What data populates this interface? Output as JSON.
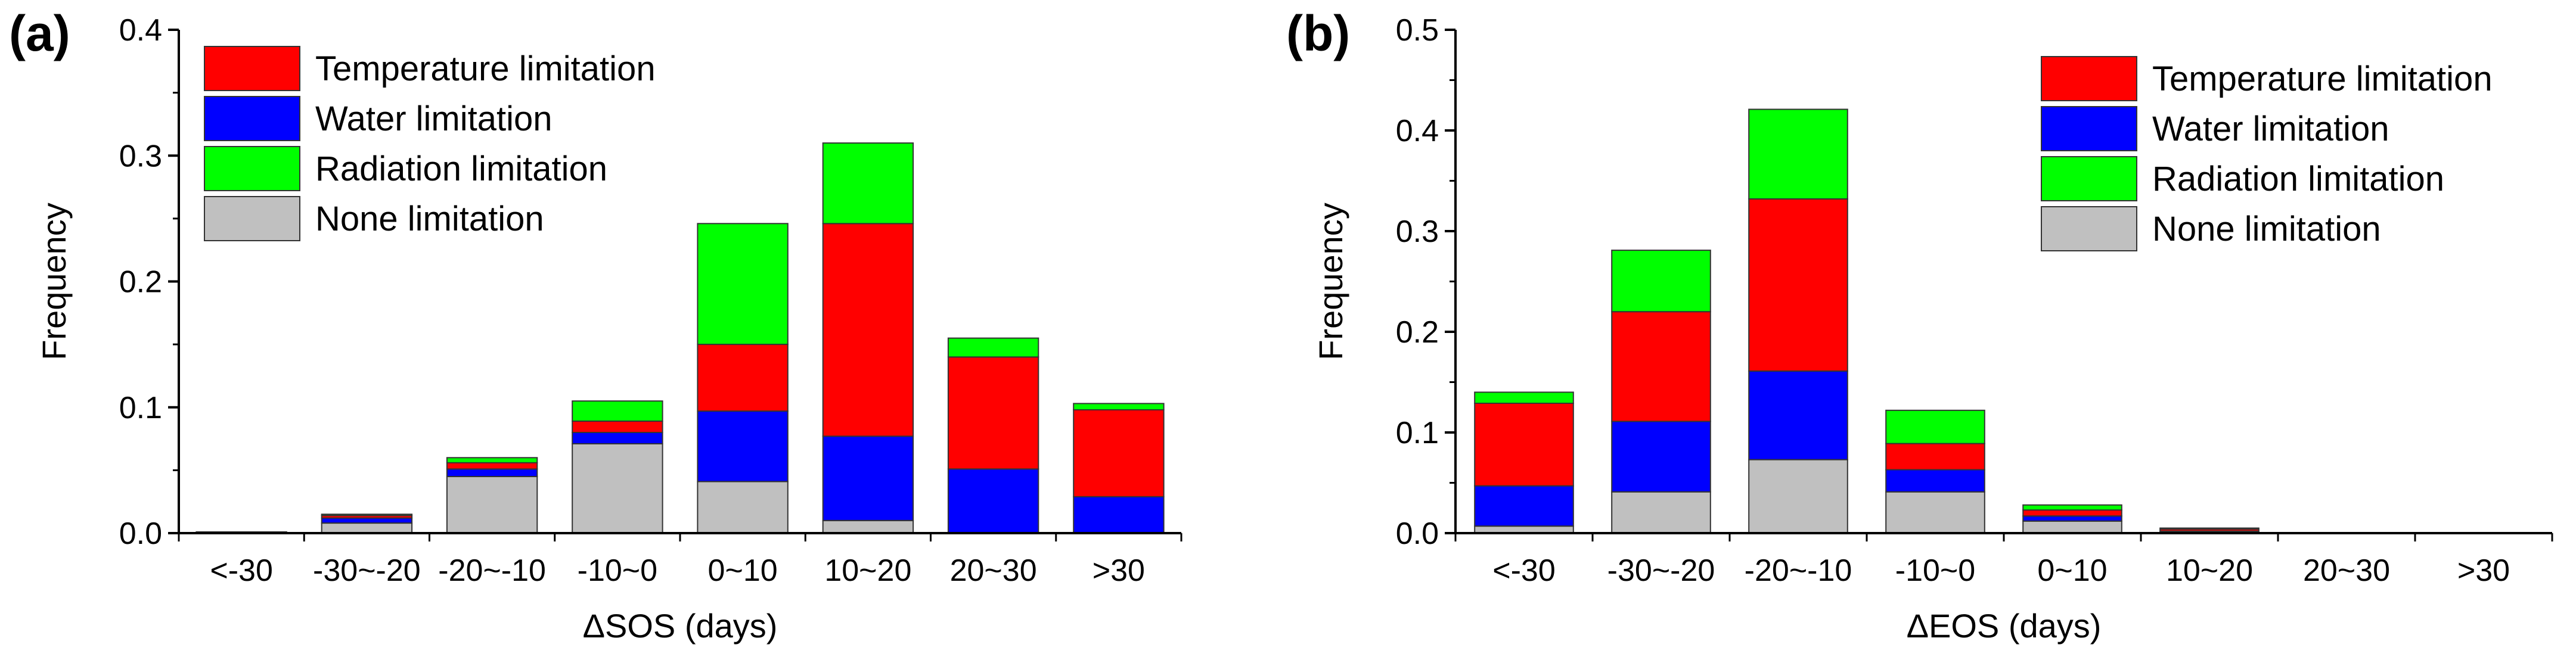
{
  "chart_data": [
    {
      "type": "bar",
      "stacked": true,
      "panel_label": "(a)",
      "categories": [
        "<-30",
        "-30~-20",
        "-20~-10",
        "-10~0",
        "0~10",
        "10~20",
        "20~30",
        ">30"
      ],
      "series": [
        {
          "name": "None limitation",
          "color": "#c0c0c0",
          "values": [
            0.001,
            0.008,
            0.045,
            0.071,
            0.041,
            0.01,
            0.0,
            0.0
          ]
        },
        {
          "name": "Water limitation",
          "color": "#0000ff",
          "values": [
            0.0,
            0.004,
            0.006,
            0.009,
            0.056,
            0.067,
            0.051,
            0.029
          ]
        },
        {
          "name": "Temperature limitation",
          "color": "#ff0000",
          "values": [
            0.0,
            0.002,
            0.005,
            0.009,
            0.053,
            0.169,
            0.089,
            0.069
          ]
        },
        {
          "name": "Radiation limitation",
          "color": "#00ff00",
          "values": [
            0.0,
            0.001,
            0.004,
            0.016,
            0.096,
            0.064,
            0.015,
            0.005
          ]
        }
      ],
      "legend_order": [
        "Temperature limitation",
        "Water limitation",
        "Radiation limitation",
        "None limitation"
      ],
      "legend_position": "top-left",
      "xlabel": "ΔSOS (days)",
      "ylabel": "Frequency",
      "ylim": [
        0,
        0.4
      ],
      "yticks": [
        "0.0",
        "0.1",
        "0.2",
        "0.3",
        "0.4"
      ],
      "grid": false
    },
    {
      "type": "bar",
      "stacked": true,
      "panel_label": "(b)",
      "categories": [
        "<-30",
        "-30~-20",
        "-20~-10",
        "-10~0",
        "0~10",
        "10~20",
        "20~30",
        ">30"
      ],
      "series": [
        {
          "name": "None limitation",
          "color": "#c0c0c0",
          "values": [
            0.007,
            0.041,
            0.073,
            0.041,
            0.012,
            0.001,
            0.0,
            0.0
          ]
        },
        {
          "name": "Water limitation",
          "color": "#0000ff",
          "values": [
            0.04,
            0.07,
            0.088,
            0.022,
            0.005,
            0.001,
            0.0,
            0.0
          ]
        },
        {
          "name": "Temperature limitation",
          "color": "#ff0000",
          "values": [
            0.082,
            0.109,
            0.171,
            0.026,
            0.006,
            0.002,
            0.0,
            0.0
          ]
        },
        {
          "name": "Radiation limitation",
          "color": "#00ff00",
          "values": [
            0.011,
            0.061,
            0.089,
            0.033,
            0.005,
            0.001,
            0.0,
            0.0
          ]
        }
      ],
      "legend_order": [
        "Temperature limitation",
        "Water limitation",
        "Radiation limitation",
        "None limitation"
      ],
      "legend_position": "top-right",
      "xlabel": "ΔEOS (days)",
      "ylabel": "Frequency",
      "ylim": [
        0,
        0.5
      ],
      "yticks": [
        "0.0",
        "0.1",
        "0.2",
        "0.3",
        "0.4",
        "0.5"
      ],
      "grid": false
    }
  ]
}
